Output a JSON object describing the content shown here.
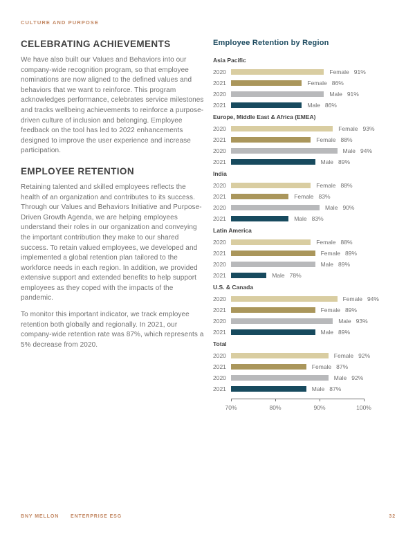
{
  "page": {
    "eyebrow": "CULTURE AND PURPOSE",
    "footer": {
      "brand": "BNY MELLON",
      "doc": "ENTERPRISE ESG",
      "page_number": "32"
    }
  },
  "article": {
    "sections": [
      {
        "heading": "CELEBRATING ACHIEVEMENTS",
        "paragraphs": [
          "We have also built our Values and Behaviors into our company-wide recognition program, so that employee nominations are now aligned to the defined values and behaviors that we want to reinforce. This program acknowledges performance, celebrates service milestones and tracks wellbeing achievements to reinforce a purpose-driven culture of inclusion and belonging. Employee feedback on the tool has led to 2022 enhancements designed to improve the user experience and increase participation."
        ]
      },
      {
        "heading": "EMPLOYEE RETENTION",
        "paragraphs": [
          "Retaining talented and skilled employees reflects the health of an organization and contributes to its success. Through our Values and Behaviors Initiative and Purpose-Driven Growth Agenda, we are helping employees understand their roles in our organization and conveying the important contribution they make to our shared success. To retain valued employees, we developed and implemented a global retention plan tailored to the workforce needs in each region. In addition, we provided extensive support and extended benefits to help support employees as they coped with the impacts of the pandemic.",
          "To monitor this important indicator, we track employee retention both globally and regionally. In 2021, our company-wide retention rate was 87%, which represents a 5% decrease from 2020."
        ]
      }
    ]
  },
  "chart_data": {
    "type": "bar",
    "orientation": "horizontal",
    "title": "Employee Retention by Region",
    "xlabel": "",
    "ylabel": "",
    "xlim": [
      70,
      100
    ],
    "x_ticks": [
      "70%",
      "80%",
      "90%",
      "100%"
    ],
    "grid": false,
    "legend_position": "none",
    "colors": {
      "female_2020": "#d9cda1",
      "female_2021": "#aa965b",
      "male_2020": "#b8b9bb",
      "male_2021": "#174a5e"
    },
    "groups": [
      {
        "region": "Asia Pacific",
        "bars": [
          {
            "year": "2020",
            "gender": "Female",
            "value": 91,
            "display": "91%"
          },
          {
            "year": "2021",
            "gender": "Female",
            "value": 86,
            "display": "86%"
          },
          {
            "year": "2020",
            "gender": "Male",
            "value": 91,
            "display": "91%"
          },
          {
            "year": "2021",
            "gender": "Male",
            "value": 86,
            "display": "86%"
          }
        ]
      },
      {
        "region": "Europe, Middle East & Africa (EMEA)",
        "bars": [
          {
            "year": "2020",
            "gender": "Female",
            "value": 93,
            "display": "93%"
          },
          {
            "year": "2021",
            "gender": "Female",
            "value": 88,
            "display": "88%"
          },
          {
            "year": "2020",
            "gender": "Male",
            "value": 94,
            "display": "94%"
          },
          {
            "year": "2021",
            "gender": "Male",
            "value": 89,
            "display": "89%"
          }
        ]
      },
      {
        "region": "India",
        "bars": [
          {
            "year": "2020",
            "gender": "Female",
            "value": 88,
            "display": "88%"
          },
          {
            "year": "2021",
            "gender": "Female",
            "value": 83,
            "display": "83%"
          },
          {
            "year": "2020",
            "gender": "Male",
            "value": 90,
            "display": "90%"
          },
          {
            "year": "2021",
            "gender": "Male",
            "value": 83,
            "display": "83%"
          }
        ]
      },
      {
        "region": "Latin America",
        "bars": [
          {
            "year": "2020",
            "gender": "Female",
            "value": 88,
            "display": "88%"
          },
          {
            "year": "2021",
            "gender": "Female",
            "value": 89,
            "display": "89%"
          },
          {
            "year": "2020",
            "gender": "Male",
            "value": 89,
            "display": "89%"
          },
          {
            "year": "2021",
            "gender": "Male",
            "value": 78,
            "display": "78%"
          }
        ]
      },
      {
        "region": "U.S. & Canada",
        "bars": [
          {
            "year": "2020",
            "gender": "Female",
            "value": 94,
            "display": "94%"
          },
          {
            "year": "2021",
            "gender": "Female",
            "value": 89,
            "display": "89%"
          },
          {
            "year": "2020",
            "gender": "Male",
            "value": 93,
            "display": "93%"
          },
          {
            "year": "2021",
            "gender": "Male",
            "value": 89,
            "display": "89%"
          }
        ]
      },
      {
        "region": "Total",
        "bars": [
          {
            "year": "2020",
            "gender": "Female",
            "value": 92,
            "display": "92%"
          },
          {
            "year": "2021",
            "gender": "Female",
            "value": 87,
            "display": "87%"
          },
          {
            "year": "2020",
            "gender": "Male",
            "value": 92,
            "display": "92%"
          },
          {
            "year": "2021",
            "gender": "Male",
            "value": 87,
            "display": "87%"
          }
        ]
      }
    ]
  }
}
